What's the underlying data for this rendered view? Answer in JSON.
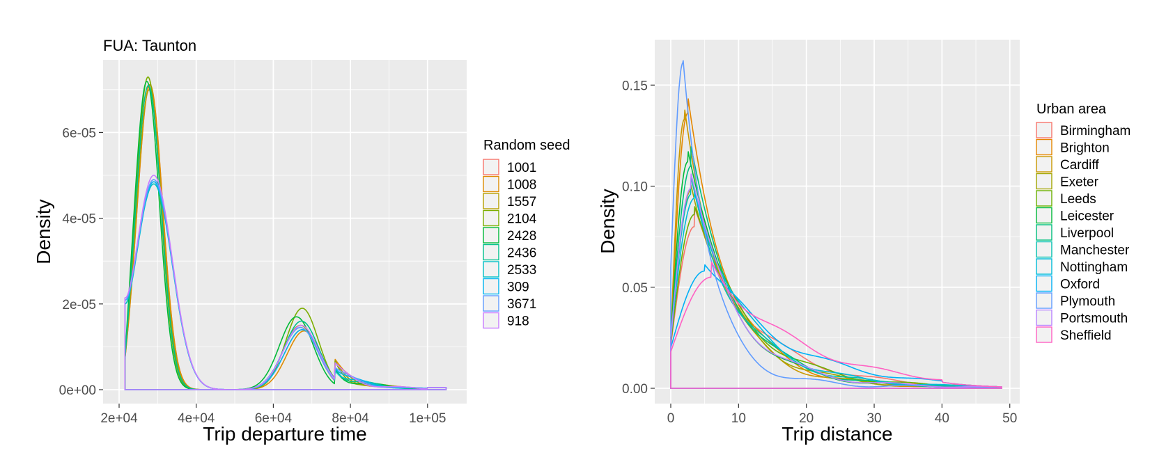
{
  "chart_data": [
    {
      "type": "line",
      "title": "FUA: Taunton",
      "xlabel": "Trip departure time",
      "ylabel": "Density",
      "xlim": [
        20000,
        106000
      ],
      "ylim": [
        0,
        7.5e-05
      ],
      "x_ticks": [
        20000,
        40000,
        60000,
        80000,
        100000
      ],
      "x_tick_labels": [
        "2e+04",
        "4e+04",
        "6e+04",
        "8e+04",
        "1e+05"
      ],
      "y_ticks": [
        0,
        2e-05,
        4e-05,
        6e-05
      ],
      "y_tick_labels": [
        "0e+00",
        "2e-05",
        "4e-05",
        "6e-05"
      ],
      "grid": true,
      "legend": {
        "title": "Random seed",
        "placement": "right"
      },
      "series": [
        {
          "name": "1001",
          "color": "#F8766D",
          "shape": {
            "x0": 21500,
            "start": 7e-06,
            "p1": [
              28000,
              7.1e-05,
              3300
            ],
            "p2": [
              67500,
              1.4e-05,
              4600
            ],
            "tail": 5e-07
          }
        },
        {
          "name": "1008",
          "color": "#DE8C00",
          "shape": {
            "x0": 21500,
            "start": 7e-06,
            "p1": [
              28000,
              7.12e-05,
              3300
            ],
            "p2": [
              68000,
              1.37e-05,
              4400
            ],
            "tail": 5e-07
          }
        },
        {
          "name": "1557",
          "color": "#B79F00",
          "shape": {
            "x0": 21500,
            "start": 7e-06,
            "p1": [
              27800,
              7e-05,
              3300
            ],
            "p2": [
              67000,
              1.5e-05,
              4500
            ],
            "tail": 5e-07
          }
        },
        {
          "name": "2104",
          "color": "#7CAE00",
          "shape": {
            "x0": 21500,
            "start": 7e-06,
            "p1": [
              27500,
              7.3e-05,
              3250
            ],
            "p2": [
              67500,
              1.9e-05,
              4200
            ],
            "tail": 5e-07
          }
        },
        {
          "name": "2428",
          "color": "#00BA38",
          "shape": {
            "x0": 21500,
            "start": 7e-06,
            "p1": [
              27200,
              7.2e-05,
              3250
            ],
            "p2": [
              66000,
              1.7e-05,
              4400
            ],
            "tail": 5e-07
          }
        },
        {
          "name": "2436",
          "color": "#00C08B",
          "shape": {
            "x0": 21500,
            "start": 7e-06,
            "p1": [
              27600,
              7.1e-05,
              3300
            ],
            "p2": [
              67300,
              1.6e-05,
              4500
            ],
            "tail": 5e-07
          }
        },
        {
          "name": "2533",
          "color": "#00BFC4",
          "shape": {
            "x0": 21500,
            "start": 2e-05,
            "p1": [
              29000,
              4.8e-05,
              4800
            ],
            "p2": [
              67000,
              1.45e-05,
              4600
            ],
            "tail": 5e-07
          }
        },
        {
          "name": "309",
          "color": "#00B4F0",
          "shape": {
            "x0": 21500,
            "start": 2.1e-05,
            "p1": [
              29000,
              4.85e-05,
              4800
            ],
            "p2": [
              67500,
              1.4e-05,
              4600
            ],
            "tail": 5e-07
          }
        },
        {
          "name": "3671",
          "color": "#619CFF",
          "shape": {
            "x0": 21500,
            "start": 2.1e-05,
            "p1": [
              29000,
              4.9e-05,
              4800
            ],
            "p2": [
              67000,
              1.45e-05,
              4600
            ],
            "tail": 5e-07
          }
        },
        {
          "name": "918",
          "color": "#C77CFF",
          "shape": {
            "x0": 21500,
            "start": 2.15e-05,
            "p1": [
              29000,
              5e-05,
              4800
            ],
            "p2": [
              67200,
              1.5e-05,
              4600
            ],
            "tail": 5e-07
          }
        }
      ]
    },
    {
      "type": "line",
      "title": "",
      "xlabel": "Trip distance",
      "ylabel": "Density",
      "xlim": [
        0,
        49
      ],
      "ylim": [
        0,
        0.168
      ],
      "x_ticks": [
        0,
        10,
        20,
        30,
        40,
        50
      ],
      "x_tick_labels": [
        "0",
        "10",
        "20",
        "30",
        "40",
        "50"
      ],
      "y_ticks": [
        0,
        0.05,
        0.1,
        0.15
      ],
      "y_tick_labels": [
        "0.00",
        "0.05",
        "0.10",
        "0.15"
      ],
      "grid": true,
      "legend": {
        "title": "Urban area",
        "placement": "right"
      },
      "series": [
        {
          "name": "Birmingham",
          "color": "#F8766D",
          "shape": {
            "start": 0.021,
            "peak_x": 3.5,
            "peak_y": 0.08,
            "tail": 8.5
          }
        },
        {
          "name": "Brighton",
          "color": "#E58700",
          "shape": {
            "start": 0.023,
            "peak_x": 2.5,
            "peak_y": 0.136,
            "tail": 6.0
          }
        },
        {
          "name": "Cardiff",
          "color": "#C99800",
          "shape": {
            "start": 0.024,
            "peak_x": 2.0,
            "peak_y": 0.133,
            "tail": 5.8
          }
        },
        {
          "name": "Exeter",
          "color": "#A3A500",
          "shape": {
            "start": 0.025,
            "peak_x": 3.0,
            "peak_y": 0.098,
            "tail": 6.5
          }
        },
        {
          "name": "Leeds",
          "color": "#6BB100",
          "shape": {
            "start": 0.022,
            "peak_x": 3.5,
            "peak_y": 0.086,
            "tail": 7.5
          }
        },
        {
          "name": "Leicester",
          "color": "#00BA38",
          "shape": {
            "start": 0.024,
            "peak_x": 2.5,
            "peak_y": 0.112,
            "tail": 6.2
          }
        },
        {
          "name": "Liverpool",
          "color": "#00BF7D",
          "shape": {
            "start": 0.024,
            "peak_x": 3.0,
            "peak_y": 0.11,
            "tail": 6.5
          }
        },
        {
          "name": "Manchester",
          "color": "#00C0AF",
          "shape": {
            "start": 0.023,
            "peak_x": 3.0,
            "peak_y": 0.096,
            "tail": 7.0
          }
        },
        {
          "name": "Nottingham",
          "color": "#00BCD8",
          "shape": {
            "start": 0.025,
            "peak_x": 3.5,
            "peak_y": 0.094,
            "tail": 7.2
          }
        },
        {
          "name": "Oxford",
          "color": "#00B0F6",
          "shape": {
            "start": 0.02,
            "peak_x": 5.0,
            "peak_y": 0.058,
            "tail": 11.0
          }
        },
        {
          "name": "Plymouth",
          "color": "#619CFF",
          "shape": {
            "start": 0.06,
            "peak_x": 1.8,
            "peak_y": 0.161,
            "tail": 4.0
          }
        },
        {
          "name": "Portsmouth",
          "color": "#B983FF",
          "shape": {
            "start": 0.024,
            "peak_x": 3.0,
            "peak_y": 0.099,
            "tail": 6.4
          }
        },
        {
          "name": "Sheffield",
          "color": "#FF61C3",
          "shape": {
            "start": 0.018,
            "peak_x": 6.0,
            "peak_y": 0.055,
            "tail": 12.5
          }
        }
      ]
    }
  ]
}
